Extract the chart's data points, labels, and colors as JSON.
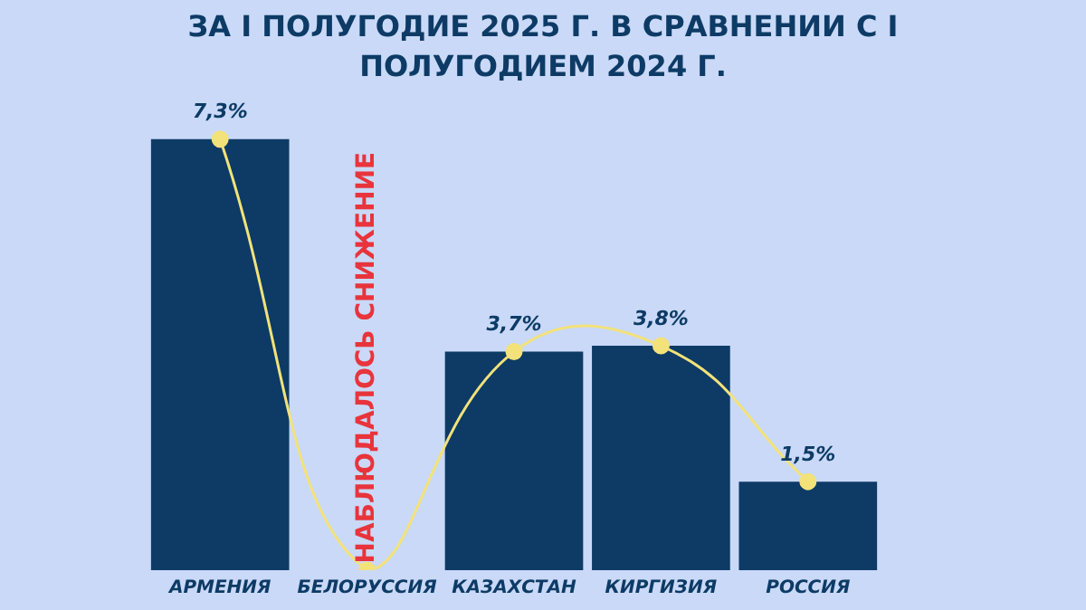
{
  "chart_data": {
    "type": "bar",
    "title": "ЗА I ПОЛУГОДИЕ 2025 Г. В СРАВНЕНИИ С I ПОЛУГОДИЕМ 2024 Г.",
    "categories": [
      "АРМЕНИЯ",
      "БЕЛОРУССИЯ",
      "КАЗАХСТАН",
      "КИРГИЗИЯ",
      "РОССИЯ"
    ],
    "series": [
      {
        "color": "#0d3b66",
        "values": [
          7.3,
          null,
          3.7,
          3.8,
          1.5
        ]
      },
      {
        "type": "line",
        "color": "#f3e27a",
        "marker": "circle",
        "values": [
          7.3,
          0,
          3.7,
          3.8,
          1.5
        ],
        "value_labels": [
          "7,3%",
          null,
          "3,7%",
          "3,8%",
          "1,5%"
        ]
      }
    ],
    "tick_labels": "x",
    "grid": false,
    "legend": false,
    "annotations": [
      "НАБЛЮДАЛОСЬ СНИЖЕНИЕ"
    ]
  }
}
